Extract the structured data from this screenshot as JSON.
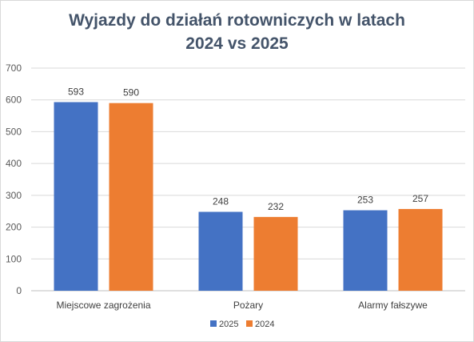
{
  "chart_data": {
    "type": "bar",
    "title_line1": "Wyjazdy do działań rotowniczych w latach",
    "title_line2": "2024 vs 2025",
    "categories": [
      "Miejscowe zagrożenia",
      "Pożary",
      "Alarmy fałszywe"
    ],
    "series": [
      {
        "name": "2025",
        "values": [
          593,
          248,
          253
        ],
        "color": "#4472c4"
      },
      {
        "name": "2024",
        "values": [
          590,
          232,
          257
        ],
        "color": "#ed7d31"
      }
    ],
    "ylim": [
      0,
      700
    ],
    "yticks": [
      0,
      100,
      200,
      300,
      400,
      500,
      600,
      700
    ],
    "grid": true,
    "legend": "bottom"
  }
}
